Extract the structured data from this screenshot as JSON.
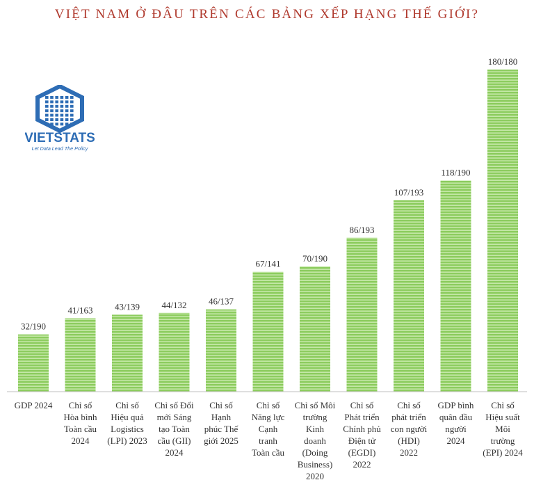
{
  "header": {
    "title": "VIỆT NAM Ở ĐÂU TRÊN CÁC BẢNG XẾP HẠNG THẾ GIỚI?"
  },
  "logo": {
    "icon": "building-cube-icon",
    "name": "VIETSTATS",
    "tagline": "Let Data Lead The Policy",
    "color": "#2e6db5"
  },
  "colors": {
    "bar_fill": "#8ccc5e",
    "bar_stripe": "#c5e8a8",
    "title": "#b03a2e",
    "text": "#333333",
    "axis": "#bfbfbf"
  },
  "chart_data": {
    "type": "bar",
    "title": "VIỆT NAM Ở ĐÂU TRÊN CÁC BẢNG XẾP HẠNG THẾ GIỚI?",
    "xlabel": "",
    "ylabel": "",
    "grid": false,
    "ylim": [
      0,
      190
    ],
    "categories": [
      [
        "GDP 2024"
      ],
      [
        "Chỉ số",
        "Hòa bình",
        "Toàn cầu",
        "2024"
      ],
      [
        "Chỉ số",
        "Hiệu quả",
        "Logistics",
        "(LPI) 2023"
      ],
      [
        "Chỉ số Đổi",
        "mới Sáng",
        "tạo Toàn",
        "cầu (GII)",
        "2024"
      ],
      [
        "Chỉ số",
        "Hạnh",
        "phúc Thế",
        "giới 2025"
      ],
      [
        "Chỉ số",
        "Năng lực",
        "Cạnh",
        "tranh",
        "Toàn cầu"
      ],
      [
        "Chỉ số Môi",
        "trường",
        "Kinh",
        "doanh",
        "(Doing",
        "Business)",
        "2020"
      ],
      [
        "Chỉ số",
        "Phát triển",
        "Chính phủ",
        "Điện tử",
        "(EGDI)",
        "2022"
      ],
      [
        "Chỉ số",
        "phát triển",
        "con người",
        "(HDI)",
        "2022"
      ],
      [
        "GDP bình",
        "quân đầu",
        "người",
        "2024"
      ],
      [
        "Chỉ số",
        "Hiệu suất",
        "Môi",
        "trường",
        "(EPI) 2024"
      ]
    ],
    "values": [
      32,
      41,
      43,
      44,
      46,
      67,
      70,
      86,
      107,
      118,
      180
    ],
    "data_labels": [
      "32/190",
      "41/163",
      "43/139",
      "44/132",
      "46/137",
      "67/141",
      "70/190",
      "86/193",
      "107/193",
      "118/190",
      "180/180"
    ]
  }
}
